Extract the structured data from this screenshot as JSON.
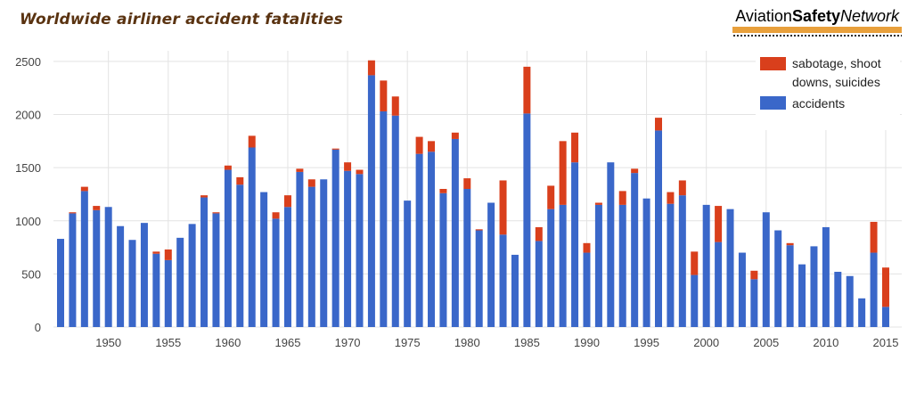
{
  "chart_data": {
    "type": "bar",
    "stacked": true,
    "title": "Worldwide airliner accident fatalities",
    "source_logo": {
      "part1": "Aviation",
      "part2": "Safety",
      "part3": "Network"
    },
    "x": [
      1946,
      1947,
      1948,
      1949,
      1950,
      1951,
      1952,
      1953,
      1954,
      1955,
      1956,
      1957,
      1958,
      1959,
      1960,
      1961,
      1962,
      1963,
      1964,
      1965,
      1966,
      1967,
      1968,
      1969,
      1970,
      1971,
      1972,
      1973,
      1974,
      1975,
      1976,
      1977,
      1978,
      1979,
      1980,
      1981,
      1982,
      1983,
      1984,
      1985,
      1986,
      1987,
      1988,
      1989,
      1990,
      1991,
      1992,
      1993,
      1994,
      1995,
      1996,
      1997,
      1998,
      1999,
      2000,
      2001,
      2002,
      2003,
      2004,
      2005,
      2006,
      2007,
      2008,
      2009,
      2010,
      2011,
      2012,
      2013,
      2014,
      2015
    ],
    "xticks": [
      "1950",
      "1955",
      "1960",
      "1965",
      "1970",
      "1975",
      "1980",
      "1985",
      "1990",
      "1995",
      "2000",
      "2005",
      "2010",
      "2015"
    ],
    "yticks": [
      "0",
      "500",
      "1000",
      "1500",
      "2000",
      "2500"
    ],
    "ylim": [
      0,
      2600
    ],
    "series": [
      {
        "name": "accidents",
        "color": "#3a67c9",
        "values": [
          830,
          1070,
          1280,
          1100,
          1130,
          950,
          820,
          980,
          690,
          630,
          840,
          970,
          1220,
          1070,
          1480,
          1340,
          1690,
          1270,
          1020,
          1130,
          1460,
          1320,
          1390,
          1670,
          1470,
          1440,
          2370,
          2030,
          1990,
          1190,
          1630,
          1650,
          1260,
          1770,
          1300,
          910,
          1170,
          870,
          680,
          2010,
          810,
          1110,
          1150,
          1550,
          700,
          1150,
          1550,
          1150,
          1450,
          1210,
          1850,
          1160,
          1240,
          490,
          1150,
          800,
          1110,
          700,
          450,
          1080,
          910,
          770,
          590,
          760,
          940,
          520,
          480,
          270,
          700,
          190
        ]
      },
      {
        "name": "sabotage, shoot downs, suicides",
        "color": "#d93f1c",
        "values": [
          0,
          10,
          40,
          40,
          0,
          0,
          0,
          0,
          20,
          100,
          0,
          0,
          20,
          10,
          40,
          70,
          110,
          0,
          60,
          110,
          30,
          70,
          0,
          10,
          80,
          40,
          140,
          290,
          180,
          0,
          160,
          100,
          40,
          60,
          100,
          10,
          0,
          510,
          0,
          440,
          130,
          220,
          600,
          280,
          90,
          20,
          0,
          130,
          40,
          0,
          120,
          110,
          140,
          220,
          0,
          340,
          0,
          0,
          80,
          0,
          0,
          20,
          0,
          0,
          0,
          0,
          0,
          0,
          290,
          370
        ]
      }
    ]
  },
  "legend": {
    "sabotage_label_line1": "sabotage, shoot",
    "sabotage_label_line2": "downs, suicides",
    "accidents_label": "accidents"
  }
}
